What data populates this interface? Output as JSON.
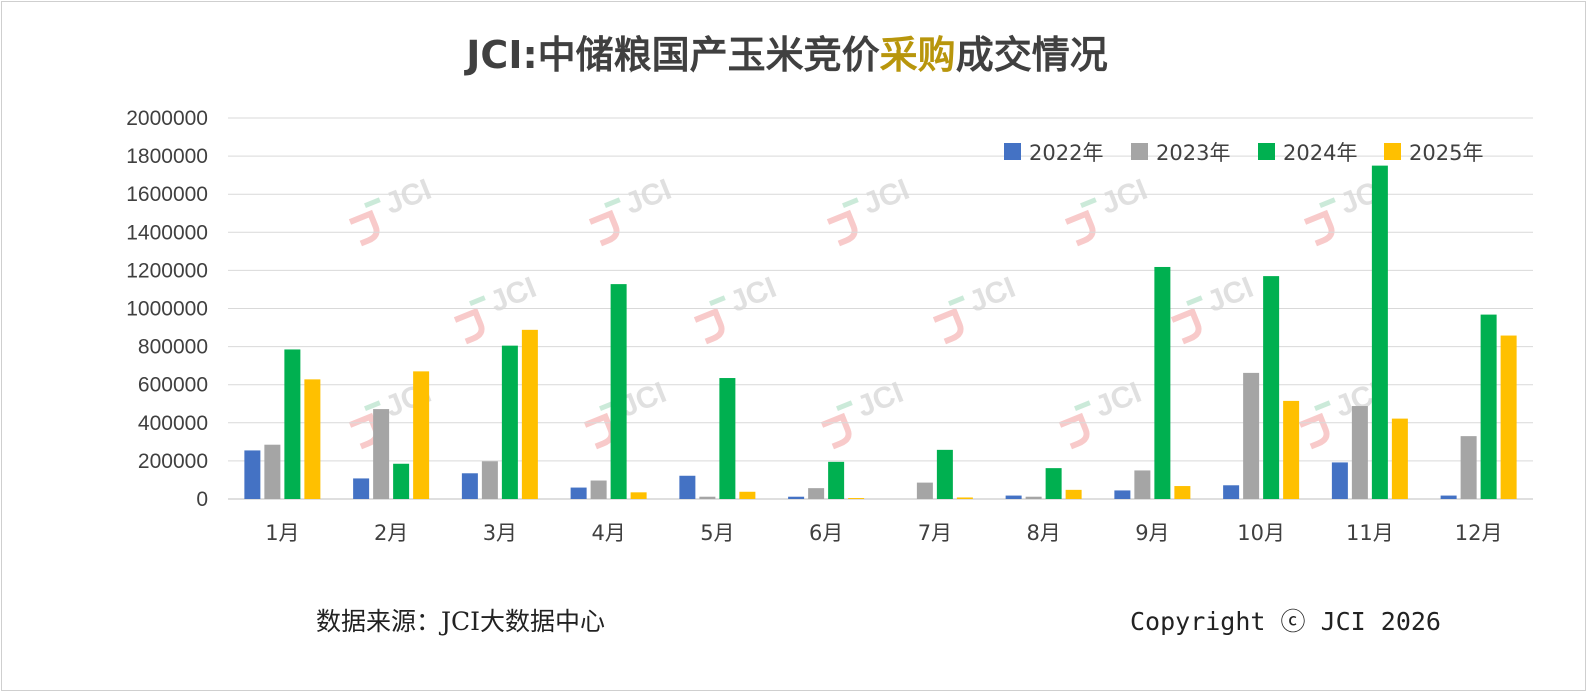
{
  "title": {
    "prefix": "JCI:中储粮国产玉米竞价",
    "highlight": "采购",
    "suffix": "成交情况",
    "highlight_color": "#b8960c"
  },
  "footer": {
    "source": "数据来源：JCI大数据中心",
    "copyright": "Copyright ⓒ JCI 2026"
  },
  "watermark": {
    "text": "JCI",
    "colors": [
      "#f4a6a6",
      "#a8dcc0"
    ]
  },
  "chart_data": {
    "type": "bar",
    "categories": [
      "1月",
      "2月",
      "3月",
      "4月",
      "5月",
      "6月",
      "7月",
      "8月",
      "9月",
      "10月",
      "11月",
      "12月"
    ],
    "series": [
      {
        "name": "2022年",
        "color": "#4472c4",
        "values": [
          255000,
          108000,
          135000,
          60000,
          122000,
          12000,
          0,
          18000,
          45000,
          72000,
          192000,
          18000
        ]
      },
      {
        "name": "2023年",
        "color": "#a5a5a5",
        "values": [
          285000,
          472000,
          198000,
          97000,
          12000,
          57000,
          86000,
          12000,
          150000,
          662000,
          488000,
          330000
        ]
      },
      {
        "name": "2024年",
        "color": "#00b050",
        "values": [
          785000,
          185000,
          805000,
          1128000,
          635000,
          195000,
          258000,
          162000,
          1218000,
          1170000,
          1750000,
          968000
        ]
      },
      {
        "name": "2025年",
        "color": "#ffc000",
        "values": [
          628000,
          670000,
          888000,
          35000,
          38000,
          5000,
          8000,
          48000,
          68000,
          515000,
          422000,
          858000
        ]
      }
    ],
    "ylim": [
      0,
      2000000
    ],
    "yticks": [
      "0",
      "200000",
      "400000",
      "600000",
      "800000",
      "1000000",
      "1200000",
      "1400000",
      "1600000",
      "1800000",
      "2000000"
    ],
    "grid": true,
    "legend_position": "top-right",
    "xlabel": "",
    "ylabel": ""
  }
}
